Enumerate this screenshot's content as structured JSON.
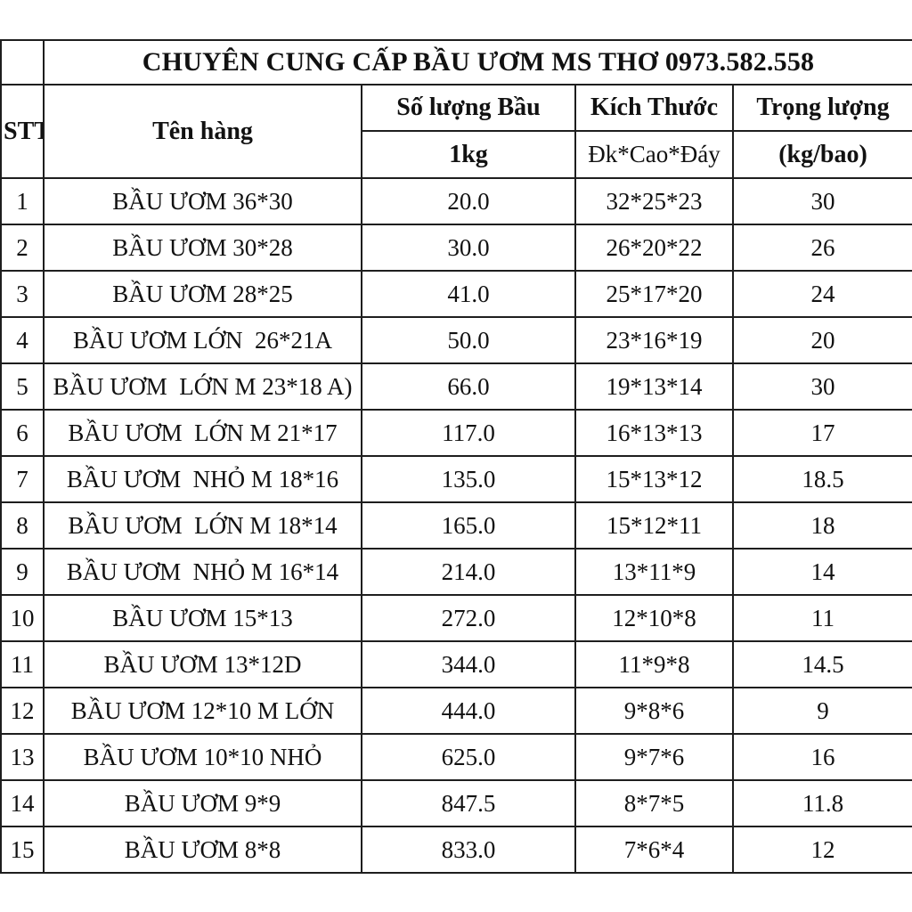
{
  "page": {
    "background": "#ffffff",
    "border_color": "#1e1e1e",
    "title_row_border_color": "#b3b3b3"
  },
  "table": {
    "title": "CHUYÊN CUNG CẤP BẦU ƯƠM MS THƠ 0973.582.558",
    "headers": {
      "stt": "STT",
      "ten_hang": "Tên hàng",
      "so_luong_bau": "Số lượng Bầu",
      "so_luong_bau_unit": "1kg",
      "kich_thuoc": "Kích Thước",
      "kich_thuoc_unit": "Đk*Cao*Đáy",
      "trong_luong": "Trọng lượng",
      "trong_luong_unit": "(kg/bao)"
    },
    "rows": [
      {
        "stt": "1",
        "name": "BẦU ƯƠM 36*30",
        "qty": "20.0",
        "size": "32*25*23",
        "weight": "30"
      },
      {
        "stt": "2",
        "name": "BẦU ƯƠM 30*28",
        "qty": "30.0",
        "size": "26*20*22",
        "weight": "26"
      },
      {
        "stt": "3",
        "name": "BẦU ƯƠM 28*25",
        "qty": "41.0",
        "size": "25*17*20",
        "weight": "24"
      },
      {
        "stt": "4",
        "name": "BẦU ƯƠM LỚN  26*21A",
        "qty": "50.0",
        "size": "23*16*19",
        "weight": "20"
      },
      {
        "stt": "5",
        "name": "BẦU ƯƠM  LỚN M 23*18 A)",
        "qty": "66.0",
        "size": "19*13*14",
        "weight": "30"
      },
      {
        "stt": "6",
        "name": "BẦU ƯƠM  LỚN M 21*17",
        "qty": "117.0",
        "size": "16*13*13",
        "weight": "17"
      },
      {
        "stt": "7",
        "name": "BẦU ƯƠM  NHỎ M 18*16",
        "qty": "135.0",
        "size": "15*13*12",
        "weight": "18.5"
      },
      {
        "stt": "8",
        "name": "BẦU ƯƠM  LỚN M 18*14",
        "qty": "165.0",
        "size": "15*12*11",
        "weight": "18"
      },
      {
        "stt": "9",
        "name": "BẦU ƯƠM  NHỎ M 16*14",
        "qty": "214.0",
        "size": "13*11*9",
        "weight": "14"
      },
      {
        "stt": "10",
        "name": "BẦU ƯƠM 15*13",
        "qty": "272.0",
        "size": "12*10*8",
        "weight": "11"
      },
      {
        "stt": "11",
        "name": "BẦU ƯƠM 13*12D",
        "qty": "344.0",
        "size": "11*9*8",
        "weight": "14.5"
      },
      {
        "stt": "12",
        "name": "BẦU ƯƠM 12*10 M LỚN",
        "qty": "444.0",
        "size": "9*8*6",
        "weight": "9"
      },
      {
        "stt": "13",
        "name": "BẦU ƯƠM 10*10 NHỎ",
        "qty": "625.0",
        "size": "9*7*6",
        "weight": "16"
      },
      {
        "stt": "14",
        "name": "BẦU ƯƠM 9*9",
        "qty": "847.5",
        "size": "8*7*5",
        "weight": "11.8"
      },
      {
        "stt": "15",
        "name": "BẦU ƯƠM 8*8",
        "qty": "833.0",
        "size": "7*6*4",
        "weight": "12"
      }
    ]
  }
}
